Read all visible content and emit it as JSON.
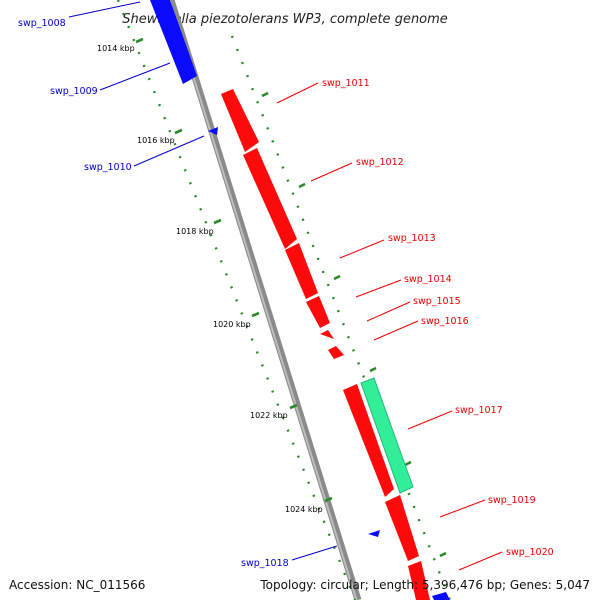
{
  "title": "Shewanella piezotolerans WP3, complete genome",
  "footer": {
    "accession": "Accession: NC_011566",
    "summary": "Topology: circular; Length: 5,396,476 bp; Genes: 5,047"
  },
  "scale_labels": [
    "1014 kbp",
    "1016 kbp",
    "1018 kbp",
    "1020 kbp",
    "1022 kbp",
    "1024 kbp"
  ],
  "colors": {
    "forward_gene": "#ff0000",
    "reverse_gene": "#0000ff",
    "special_gene": "#33ee99",
    "backbone": "#888888",
    "ticks": "#228822"
  },
  "genes": [
    {
      "id": "swp_1008",
      "strand": "reverse"
    },
    {
      "id": "swp_1009",
      "strand": "reverse"
    },
    {
      "id": "swp_1010",
      "strand": "reverse"
    },
    {
      "id": "swp_1011",
      "strand": "forward"
    },
    {
      "id": "swp_1012",
      "strand": "forward"
    },
    {
      "id": "swp_1013",
      "strand": "forward"
    },
    {
      "id": "swp_1014",
      "strand": "forward"
    },
    {
      "id": "swp_1015",
      "strand": "forward"
    },
    {
      "id": "swp_1016",
      "strand": "forward"
    },
    {
      "id": "swp_1017",
      "strand": "forward"
    },
    {
      "id": "swp_1018",
      "strand": "reverse"
    },
    {
      "id": "swp_1019",
      "strand": "forward"
    },
    {
      "id": "swp_1020",
      "strand": "forward"
    }
  ]
}
